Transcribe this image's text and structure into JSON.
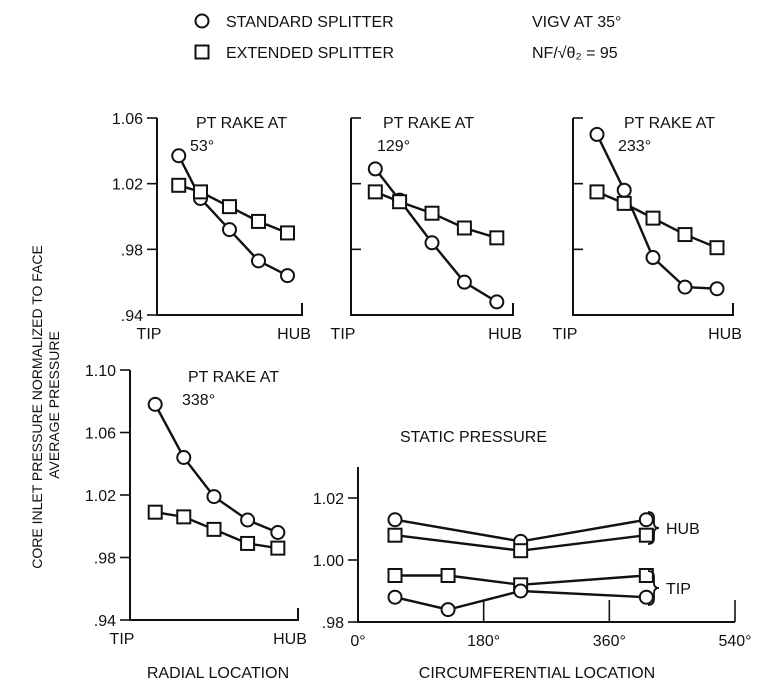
{
  "legend": {
    "circle_label": "STANDARD SPLITTER",
    "square_label": "EXTENDED SPLITTER",
    "condition_1": "VIGV AT 35°",
    "condition_2": "NF/√θ₂ = 95"
  },
  "ylabel_line1": "CORE INLET PRESSURE NORMALIZED TO FACE",
  "ylabel_line2": "AVERAGE PRESSURE",
  "xlabel_radial": "RADIAL LOCATION",
  "xlabel_circ": "CIRCUMFERENTIAL LOCATION",
  "static_title": "STATIC PRESSURE",
  "hub_label": "HUB",
  "tip_label": "TIP",
  "chart_data": [
    {
      "type": "line",
      "title": "PT RAKE AT 53°",
      "title_line1": "PT RAKE AT",
      "title_line2": "53°",
      "ylim": [
        0.94,
        1.06
      ],
      "yticks": [
        "1.06",
        "1.02",
        ".98",
        ".94"
      ],
      "xtick_labels": [
        "TIP",
        "HUB"
      ],
      "series": [
        {
          "name": "STANDARD SPLITTER",
          "marker": "circle",
          "x": [
            0.15,
            0.3,
            0.5,
            0.7,
            0.9
          ],
          "values": [
            1.037,
            1.011,
            0.992,
            0.973,
            0.964
          ]
        },
        {
          "name": "EXTENDED SPLITTER",
          "marker": "square",
          "x": [
            0.15,
            0.3,
            0.5,
            0.7,
            0.9
          ],
          "values": [
            1.019,
            1.015,
            1.006,
            0.997,
            0.99
          ]
        }
      ]
    },
    {
      "type": "line",
      "title": "PT RAKE AT 129°",
      "title_line1": "PT RAKE AT",
      "title_line2": "129°",
      "ylim": [
        0.94,
        1.06
      ],
      "yticks": [
        "1.06",
        "1.02",
        ".98",
        ".94"
      ],
      "xtick_labels": [
        "TIP",
        "HUB"
      ],
      "series": [
        {
          "name": "STANDARD SPLITTER",
          "marker": "circle",
          "x": [
            0.15,
            0.3,
            0.5,
            0.7,
            0.9
          ],
          "values": [
            1.029,
            1.01,
            0.984,
            0.96,
            0.948
          ]
        },
        {
          "name": "EXTENDED SPLITTER",
          "marker": "square",
          "x": [
            0.15,
            0.3,
            0.5,
            0.7,
            0.9
          ],
          "values": [
            1.015,
            1.009,
            1.002,
            0.993,
            0.987
          ]
        }
      ]
    },
    {
      "type": "line",
      "title": "PT RAKE AT 233°",
      "title_line1": "PT RAKE AT",
      "title_line2": "233°",
      "ylim": [
        0.94,
        1.06
      ],
      "yticks": [
        "1.06",
        "1.02",
        ".98",
        ".94"
      ],
      "xtick_labels": [
        "TIP",
        "HUB"
      ],
      "series": [
        {
          "name": "STANDARD SPLITTER",
          "marker": "circle",
          "x": [
            0.15,
            0.32,
            0.5,
            0.7,
            0.9
          ],
          "values": [
            1.05,
            1.016,
            0.975,
            0.957,
            0.956
          ]
        },
        {
          "name": "EXTENDED SPLITTER",
          "marker": "square",
          "x": [
            0.15,
            0.32,
            0.5,
            0.7,
            0.9
          ],
          "values": [
            1.015,
            1.008,
            0.999,
            0.989,
            0.981
          ]
        }
      ]
    },
    {
      "type": "line",
      "title": "PT RAKE AT 338°",
      "title_line1": "PT RAKE AT",
      "title_line2": "338°",
      "ylim": [
        0.94,
        1.1
      ],
      "yticks": [
        "1.10",
        "1.06",
        "1.02",
        ".98",
        ".94"
      ],
      "xtick_labels": [
        "TIP",
        "HUB"
      ],
      "series": [
        {
          "name": "STANDARD SPLITTER",
          "marker": "circle",
          "x": [
            0.15,
            0.32,
            0.5,
            0.7,
            0.88
          ],
          "values": [
            1.078,
            1.044,
            1.019,
            1.004,
            0.996
          ]
        },
        {
          "name": "EXTENDED SPLITTER",
          "marker": "square",
          "x": [
            0.15,
            0.32,
            0.5,
            0.7,
            0.88
          ],
          "values": [
            1.009,
            1.006,
            0.998,
            0.989,
            0.986
          ]
        }
      ]
    },
    {
      "type": "line",
      "title": "STATIC PRESSURE",
      "ylim": [
        0.98,
        1.03
      ],
      "yticks": [
        "1.02",
        "1.00",
        ".98"
      ],
      "xlim": [
        0,
        540
      ],
      "xticks": [
        "0°",
        "180°",
        "360°",
        "540°"
      ],
      "xlabel": "CIRCUMFERENTIAL LOCATION",
      "series": [
        {
          "name": "HUB STANDARD SPLITTER",
          "marker": "circle",
          "x": [
            53,
            233,
            413
          ],
          "values": [
            1.013,
            1.006,
            1.013
          ]
        },
        {
          "name": "HUB EXTENDED SPLITTER",
          "marker": "square",
          "x": [
            53,
            233,
            413
          ],
          "values": [
            1.008,
            1.003,
            1.008
          ]
        },
        {
          "name": "TIP EXTENDED SPLITTER",
          "marker": "square",
          "x": [
            53,
            129,
            233,
            413
          ],
          "values": [
            0.995,
            0.995,
            0.992,
            0.995
          ]
        },
        {
          "name": "TIP STANDARD SPLITTER",
          "marker": "circle",
          "x": [
            53,
            129,
            233,
            413
          ],
          "values": [
            0.988,
            0.984,
            0.99,
            0.988
          ]
        }
      ]
    }
  ]
}
